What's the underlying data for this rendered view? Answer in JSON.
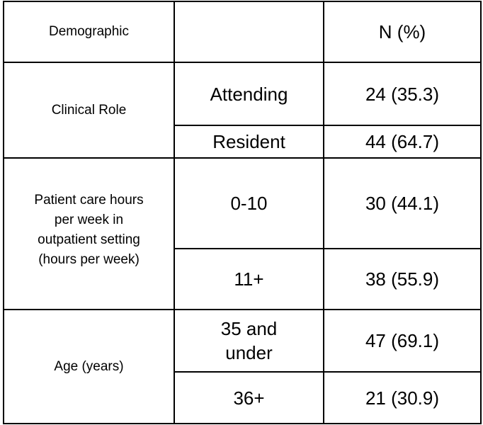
{
  "header": {
    "demographic": "Demographic",
    "middle": "",
    "n_percent": "N (%)"
  },
  "groups": [
    {
      "label": "Clinical Role",
      "rows": [
        {
          "category": "Attending",
          "value": "24 (35.3)"
        },
        {
          "category": "Resident",
          "value": "44 (64.7)"
        }
      ]
    },
    {
      "label_lines": [
        "Patient care hours",
        "per week in",
        "outpatient setting",
        "(hours per week)"
      ],
      "rows": [
        {
          "category": "0-10",
          "value": "30 (44.1)"
        },
        {
          "category": "11+",
          "value": "38 (55.9)"
        }
      ]
    },
    {
      "label": "Age (years)",
      "rows": [
        {
          "category_lines": [
            "35 and",
            "under"
          ],
          "value": "47 (69.1)"
        },
        {
          "category": "36+",
          "value": "21 (30.9)"
        }
      ]
    }
  ]
}
